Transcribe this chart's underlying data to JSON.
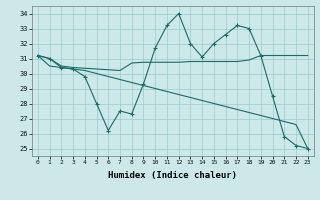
{
  "xlabel": "Humidex (Indice chaleur)",
  "bg_color": "#cce8e8",
  "grid_color": "#99cccc",
  "line_color": "#1a6b6b",
  "xlim": [
    -0.5,
    23.5
  ],
  "ylim": [
    24.5,
    34.5
  ],
  "x_ticks": [
    0,
    1,
    2,
    3,
    4,
    5,
    6,
    7,
    8,
    9,
    10,
    11,
    12,
    13,
    14,
    15,
    16,
    17,
    18,
    19,
    20,
    21,
    22,
    23
  ],
  "y_ticks": [
    25,
    26,
    27,
    28,
    29,
    30,
    31,
    32,
    33,
    34
  ],
  "lines": [
    {
      "x": [
        0,
        1,
        2,
        3,
        4,
        5,
        6,
        7,
        8,
        9,
        10,
        11,
        12,
        13,
        14,
        15,
        16,
        17,
        18,
        19,
        20,
        21,
        22,
        23
      ],
      "y": [
        31.2,
        31.0,
        30.5,
        30.4,
        30.35,
        30.3,
        30.25,
        30.2,
        30.7,
        30.75,
        30.75,
        30.75,
        30.75,
        30.8,
        30.8,
        30.8,
        30.8,
        30.8,
        30.9,
        31.2,
        31.2,
        31.2,
        31.2,
        31.2
      ],
      "marker": false
    },
    {
      "x": [
        0,
        1,
        2,
        3,
        4,
        5,
        6,
        7,
        8,
        9,
        10,
        11,
        12,
        13,
        14,
        15,
        16,
        17,
        18,
        19,
        20,
        21,
        22,
        23
      ],
      "y": [
        31.2,
        31.0,
        30.4,
        30.3,
        29.8,
        28.0,
        26.2,
        27.5,
        27.3,
        29.3,
        31.7,
        33.2,
        34.0,
        32.0,
        31.1,
        32.0,
        32.6,
        33.2,
        33.0,
        31.2,
        28.5,
        25.8,
        25.2,
        25.0
      ],
      "marker": true
    },
    {
      "x": [
        0,
        1,
        2,
        3,
        4,
        5,
        6,
        7,
        8,
        9,
        10,
        11,
        12,
        13,
        14,
        15,
        16,
        17,
        18,
        19,
        20,
        21,
        22,
        23
      ],
      "y": [
        31.2,
        30.5,
        30.4,
        30.3,
        30.2,
        30.0,
        29.8,
        29.6,
        29.4,
        29.2,
        29.0,
        28.8,
        28.6,
        28.4,
        28.2,
        28.0,
        27.8,
        27.6,
        27.4,
        27.2,
        27.0,
        26.8,
        26.6,
        25.0
      ],
      "marker": false
    }
  ]
}
